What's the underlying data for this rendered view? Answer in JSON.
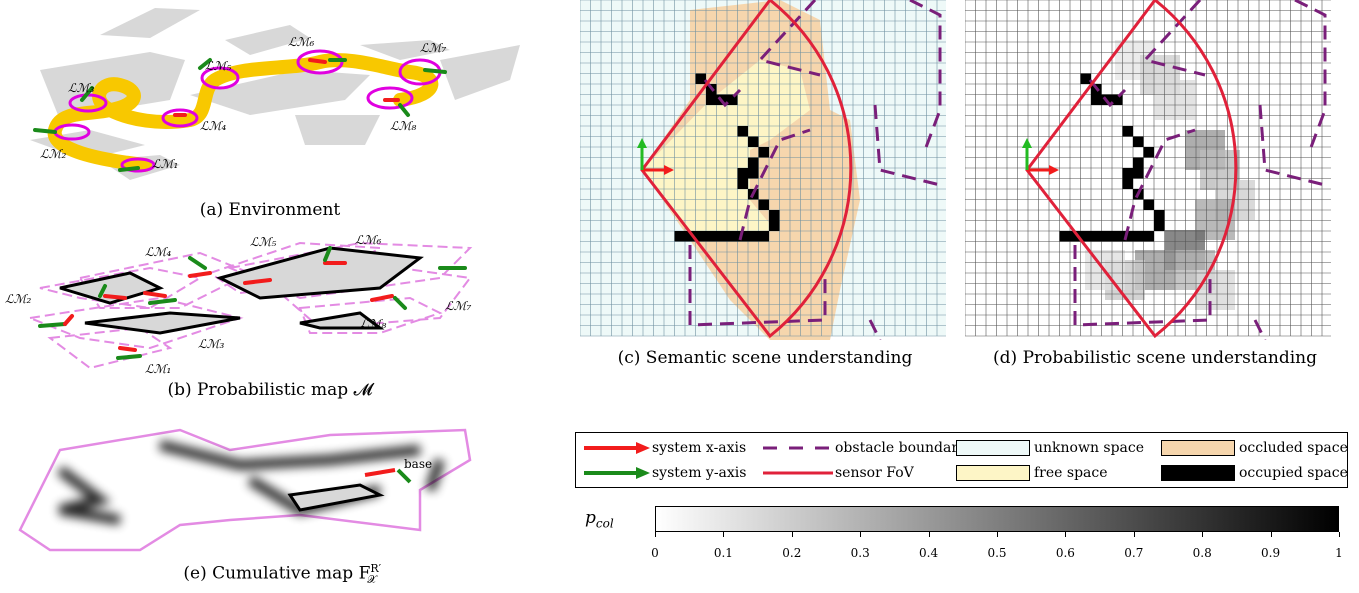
{
  "panels": {
    "a": {
      "caption": "(a) Environment",
      "labels": [
        "ℒℳ₁",
        "ℒℳ₂",
        "ℒℳ₃",
        "ℒℳ₄",
        "ℒℳ₅",
        "ℒℳ₆",
        "ℒℳ₇",
        "ℒℳ₈"
      ]
    },
    "b": {
      "caption": "(b) Probabilistic map 𝓜",
      "labels": [
        "ℒℳ₁",
        "ℒℳ₂",
        "ℒℳ₃",
        "ℒℳ₄",
        "ℒℳ₅",
        "ℒℳ₆",
        "ℒℳ₇",
        "ℒℳ₈"
      ]
    },
    "c": {
      "caption": "(c) Semantic scene understanding"
    },
    "d": {
      "caption": "(d) Probabilistic scene understanding"
    },
    "e": {
      "caption": "(e) Cumulative map F",
      "sup": "R′",
      "sub": "𝒳",
      "base_label": "base"
    }
  },
  "legend": {
    "x_axis": "system x-axis",
    "y_axis": "system y-axis",
    "obstacle": "obstacle boundary",
    "fov": "sensor FoV",
    "unknown": "unknown space",
    "free": "free space",
    "occluded": "occluded space",
    "occupied": "occupied space"
  },
  "colors": {
    "unknown": "#eef9f8",
    "free": "#fdf5c6",
    "occluded": "#f6d6ad",
    "occupied": "#000000",
    "fov": "#e0213a",
    "obstacle": "#7a1f7a",
    "x_axis": "#f21c1c",
    "y_axis": "#1a8a1a",
    "lm_ring": "#e000e0",
    "path": "#f8c800"
  },
  "colorbar": {
    "label": "p",
    "label_sub": "col",
    "ticks": [
      "0",
      "0.1",
      "0.2",
      "0.3",
      "0.4",
      "0.5",
      "0.6",
      "0.7",
      "0.8",
      "0.9",
      "1"
    ]
  }
}
